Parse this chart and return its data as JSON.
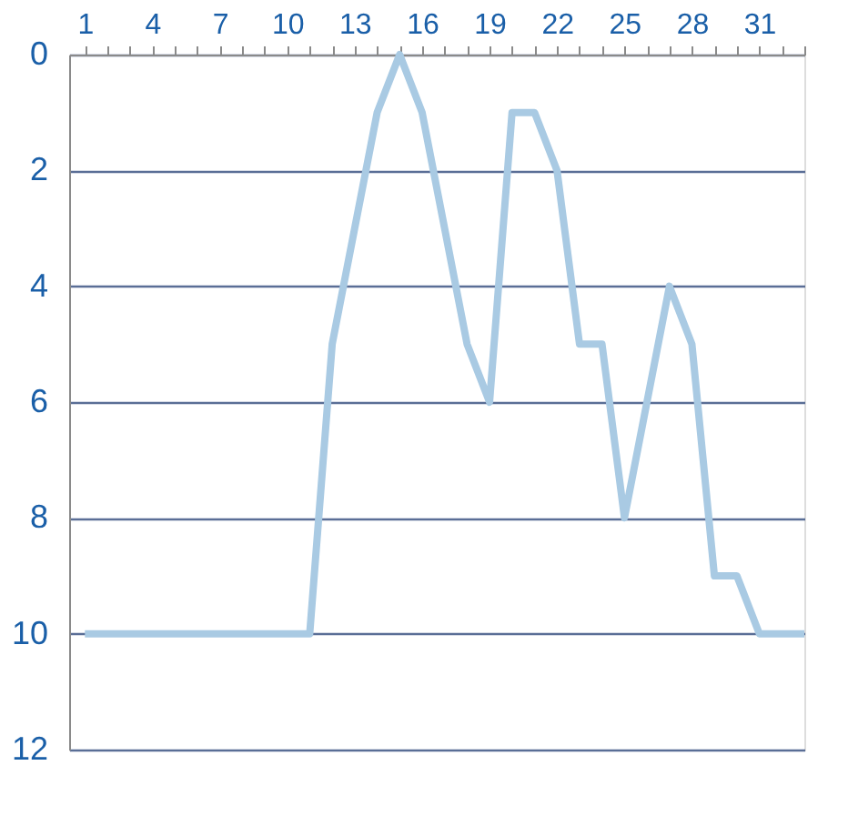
{
  "chart_data": {
    "type": "line",
    "x": [
      1,
      2,
      3,
      4,
      5,
      6,
      7,
      8,
      9,
      10,
      11,
      12,
      13,
      14,
      15,
      16,
      17,
      18,
      19,
      20,
      21,
      22,
      23,
      24,
      25,
      26,
      27,
      28,
      29,
      30,
      31,
      32,
      33
    ],
    "series": [
      {
        "color": "#a9cae3",
        "values": [
          10,
          10,
          10,
          10,
          10,
          10,
          10,
          10,
          10,
          10,
          10,
          5,
          3,
          1,
          0,
          1,
          3,
          5,
          6,
          1,
          1,
          2,
          5,
          5,
          8,
          6,
          4,
          5,
          9,
          9,
          10,
          10,
          10
        ]
      }
    ],
    "xlim": [
      0.3,
      33
    ],
    "xticks": [
      1,
      {
        "value": 2,
        "label": null
      },
      {
        "value": 3,
        "label": null
      },
      4,
      {
        "value": 5,
        "label": null
      },
      {
        "value": 6,
        "label": null
      },
      7,
      {
        "value": 8,
        "label": null
      },
      {
        "value": 9,
        "label": null
      },
      10,
      {
        "value": 11,
        "label": null
      },
      {
        "value": 12,
        "label": null
      },
      13,
      {
        "value": 14,
        "label": null
      },
      {
        "value": 15,
        "label": null
      },
      16,
      {
        "value": 17,
        "label": null
      },
      {
        "value": 18,
        "label": null
      },
      19,
      {
        "value": 20,
        "label": null
      },
      {
        "value": 21,
        "label": null
      },
      22,
      {
        "value": 23,
        "label": null
      },
      {
        "value": 24,
        "label": null
      },
      25,
      {
        "value": 26,
        "label": null
      },
      {
        "value": 27,
        "label": null
      },
      28,
      {
        "value": 29,
        "label": null
      },
      {
        "value": 30,
        "label": null
      },
      31,
      {
        "value": 32,
        "label": null
      },
      {
        "value": 33,
        "label": null
      }
    ],
    "ylim": [
      12,
      0
    ],
    "yticks": [
      0,
      2,
      4,
      6,
      8,
      10,
      12
    ],
    "grid": "y",
    "line_style": "solid",
    "marker": "none"
  }
}
